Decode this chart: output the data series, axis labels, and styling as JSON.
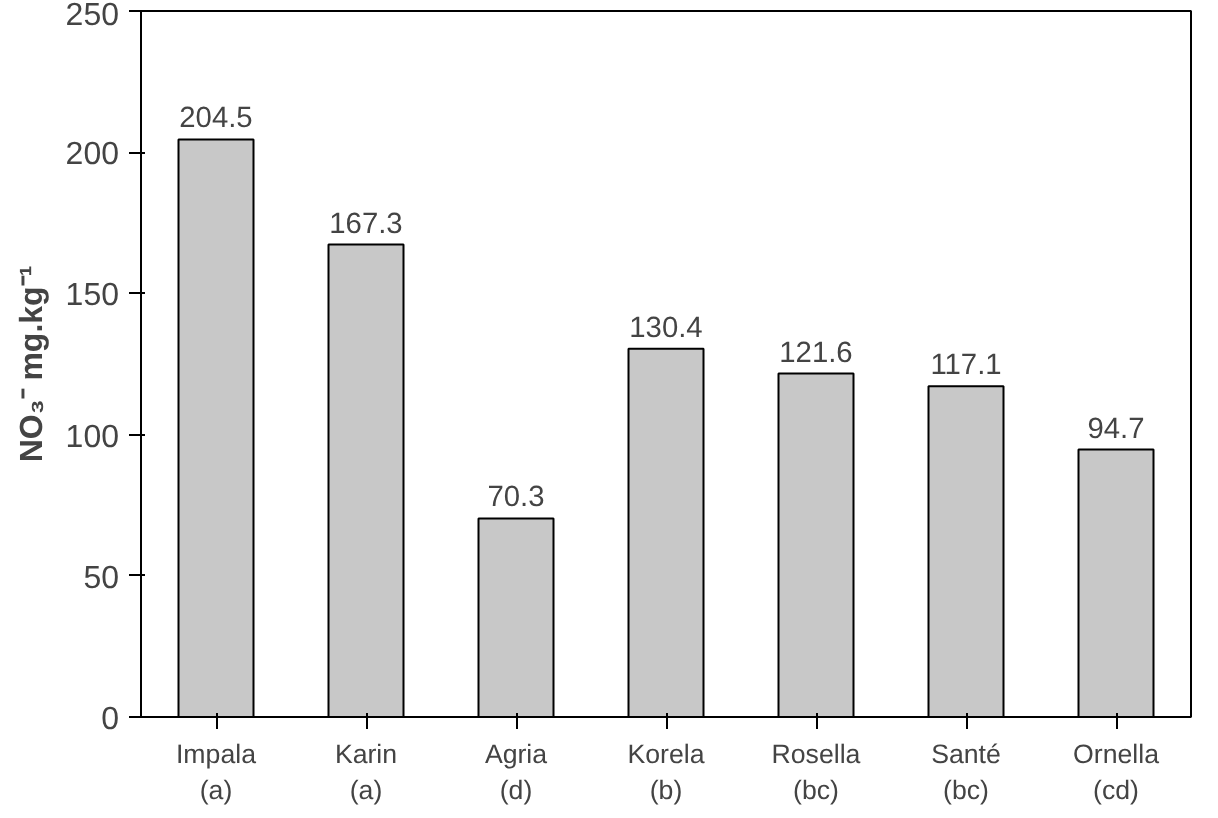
{
  "chart_data": {
    "type": "bar",
    "ylabel": "NO₃⁻ mg.kg⁻¹",
    "categories": [
      "Impala\n(a)",
      "Karin\n(a)",
      "Agria\n(d)",
      "Korela\n(b)",
      "Rosella\n(bc)",
      "Santé\n(bc)",
      "Ornella\n(cd)"
    ],
    "values": [
      204.5,
      167.3,
      70.3,
      130.4,
      121.6,
      117.1,
      94.7
    ],
    "color": "#c8c8c8",
    "ylim": [
      0,
      250
    ],
    "yticks": [
      0,
      50,
      100,
      150,
      200,
      250
    ],
    "data_labels": true
  }
}
